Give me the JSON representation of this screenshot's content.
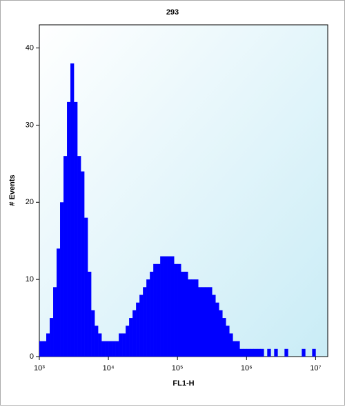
{
  "chart_data": {
    "type": "histogram",
    "title": "293",
    "xlabel": "FL1-H",
    "ylabel": "# Events",
    "xscale": "log",
    "color": "#0000ff",
    "xlim": [
      1000,
      15000000
    ],
    "ylim": [
      0,
      43
    ],
    "xticks": [
      {
        "value": 1000,
        "label": "10³"
      },
      {
        "value": 10000,
        "label": "10⁴"
      },
      {
        "value": 100000,
        "label": "10⁵"
      },
      {
        "value": 1000000,
        "label": "10⁶"
      },
      {
        "value": 10000000,
        "label": "10⁷"
      }
    ],
    "yticks": [
      0,
      10,
      20,
      30,
      40
    ],
    "bins": [
      1000,
      1122,
      1259,
      1413,
      1585,
      1778,
      1995,
      2239,
      2512,
      2818,
      3162,
      3548,
      3981,
      4467,
      5012,
      5623,
      6310,
      7079,
      7943,
      8913,
      10000,
      11220,
      12590,
      14130,
      15850,
      17780,
      19950,
      22390,
      25120,
      28180,
      31620,
      35480,
      39810,
      44670,
      50120,
      56230,
      63100,
      70790,
      79430,
      89130,
      100000,
      112200,
      125900,
      141300,
      158500,
      177800,
      199500,
      223900,
      251200,
      281800,
      316200,
      354800,
      398100,
      446700,
      501200,
      562300,
      631000,
      707900,
      794300,
      891300,
      1000000,
      1122000,
      1259000,
      1413000,
      1585000,
      1778000,
      1995000,
      2239000,
      2512000,
      2818000,
      3162000,
      3548000,
      3981000,
      4467000,
      5012000,
      5623000,
      6310000,
      7079000,
      7943000,
      8913000,
      10000000
    ],
    "values": [
      2,
      2,
      3,
      5,
      9,
      14,
      20,
      26,
      33,
      38,
      33,
      26,
      24,
      18,
      11,
      6,
      4,
      3,
      2,
      2,
      2,
      2,
      2,
      3,
      3,
      4,
      5,
      6,
      7,
      8,
      9,
      10,
      11,
      12,
      12,
      13,
      13,
      13,
      13,
      12,
      12,
      11,
      11,
      10,
      10,
      10,
      9,
      9,
      9,
      9,
      8,
      7,
      6,
      5,
      4,
      3,
      2,
      2,
      1,
      1,
      1,
      1,
      1,
      1,
      1,
      0,
      1,
      0,
      1,
      0,
      0,
      1,
      0,
      0,
      0,
      0,
      1,
      0,
      0,
      1
    ]
  }
}
